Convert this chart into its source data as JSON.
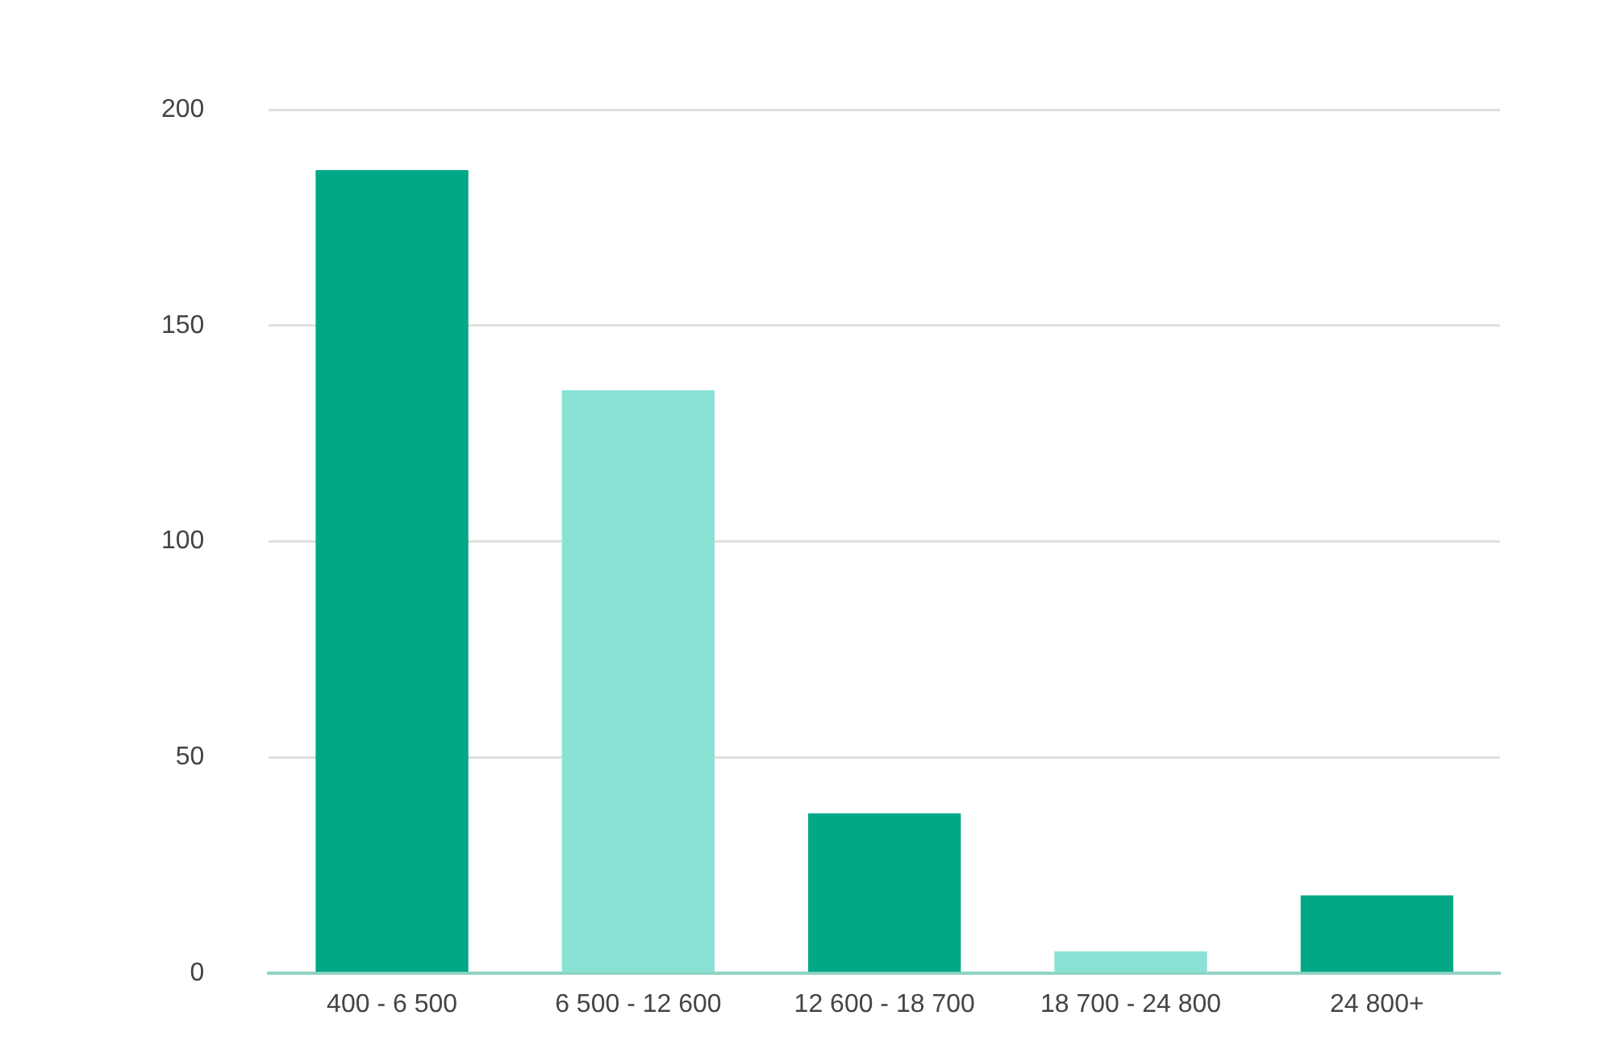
{
  "chart_data": {
    "type": "bar",
    "categories": [
      "400 - 6 500",
      "6 500 - 12 600",
      "12 600 - 18 700",
      "18 700 - 24 800",
      "24 800+"
    ],
    "values": [
      186,
      135,
      37,
      5,
      18
    ],
    "colors": [
      "#00a886",
      "#8ae2d5",
      "#00a886",
      "#8ae2d5",
      "#00a886"
    ],
    "ylim": [
      0,
      200
    ],
    "yticks": [
      0,
      50,
      100,
      150,
      200
    ],
    "grid": "y",
    "legend": false
  }
}
